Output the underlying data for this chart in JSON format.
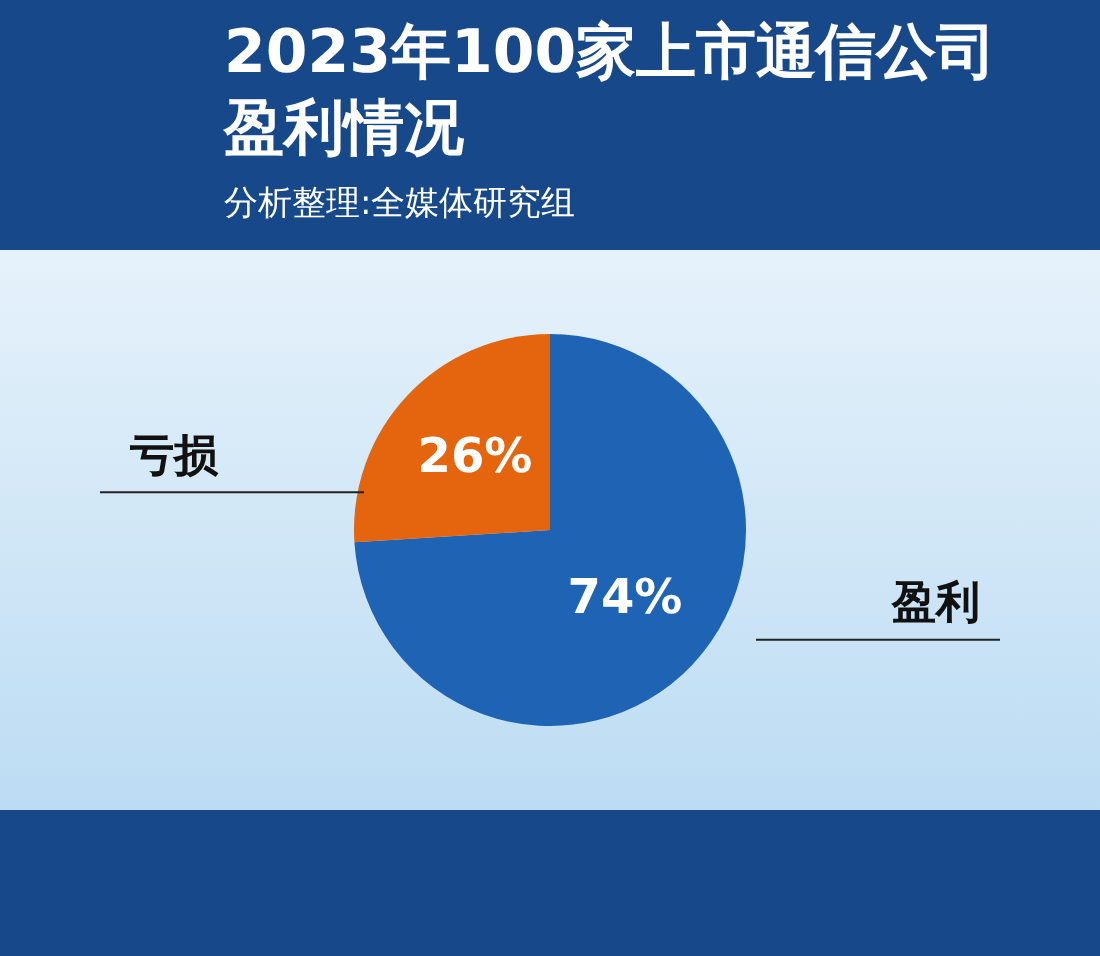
{
  "chart_data": {
    "type": "pie",
    "title": "2023年100家上市通信公司盈利情况",
    "subtitle": "分析整理:全媒体研究组",
    "categories": [
      "盈利",
      "亏损"
    ],
    "values": [
      74,
      26
    ],
    "colors": [
      "#1f63b5",
      "#e5650f"
    ],
    "value_labels": [
      "74%",
      "26%"
    ],
    "legend": false
  }
}
